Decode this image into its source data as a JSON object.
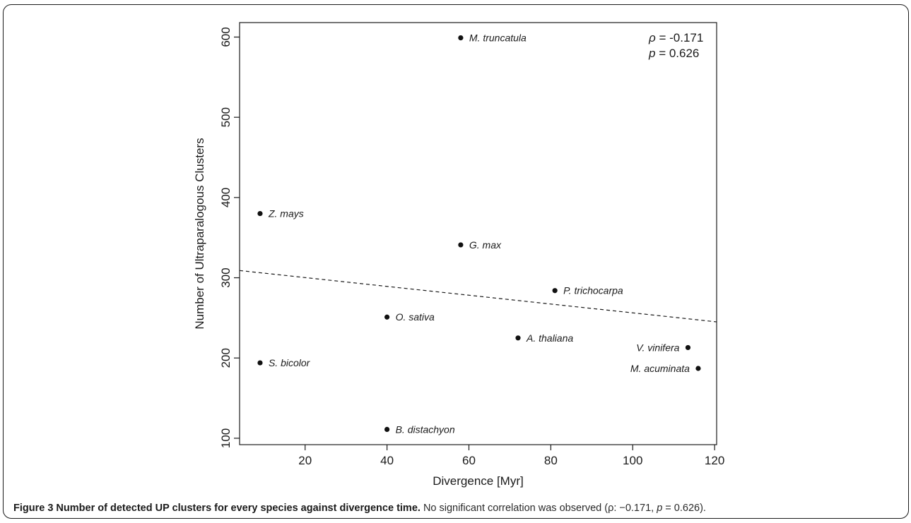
{
  "chart_data": {
    "type": "scatter",
    "xlabel": "Divergence [Myr]",
    "ylabel": "Number of Ultraparalogous Clusters",
    "xlim": [
      4,
      120.5
    ],
    "ylim": [
      92,
      618
    ],
    "xticks": [
      20,
      40,
      60,
      80,
      100,
      120
    ],
    "yticks": [
      100,
      200,
      300,
      400,
      500,
      600
    ],
    "points": [
      {
        "label": "M. truncatula",
        "x": 58,
        "y": 599,
        "label_side": "right"
      },
      {
        "label": "Z. mays",
        "x": 9,
        "y": 380,
        "label_side": "right"
      },
      {
        "label": "G. max",
        "x": 58,
        "y": 341,
        "label_side": "right"
      },
      {
        "label": "P. trichocarpa",
        "x": 81,
        "y": 284,
        "label_side": "right"
      },
      {
        "label": "O. sativa",
        "x": 40,
        "y": 251,
        "label_side": "right"
      },
      {
        "label": "A. thaliana",
        "x": 72,
        "y": 225,
        "label_side": "right"
      },
      {
        "label": "V. vinifera",
        "x": 113.5,
        "y": 213,
        "label_side": "left"
      },
      {
        "label": "S. bicolor",
        "x": 9,
        "y": 194,
        "label_side": "right"
      },
      {
        "label": "M. acuminata",
        "x": 116,
        "y": 187,
        "label_side": "left"
      },
      {
        "label": "B. distachyon",
        "x": 40,
        "y": 111,
        "label_side": "right"
      }
    ],
    "trendline": {
      "style": "dashed",
      "x": [
        4,
        120.5
      ],
      "y": [
        309,
        245
      ]
    },
    "annotations": {
      "rho_symbol": "ρ",
      "rho_text": " = -0.171",
      "p_symbol": "p",
      "p_text": " = 0.626"
    },
    "grid": false,
    "legend": "none"
  },
  "caption": {
    "bold": "Figure 3 Number of detected UP clusters for every species against divergence time.",
    "text_before_p": " No significant correlation was observed (ρ: −0.171, ",
    "p_symbol": "p",
    "text_after_p": " = 0.626)."
  }
}
